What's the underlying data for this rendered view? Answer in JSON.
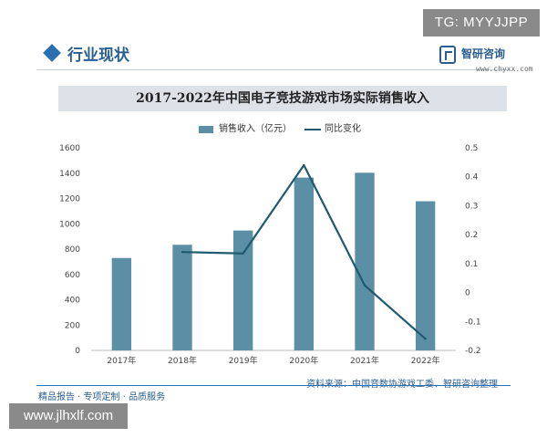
{
  "badge_top": "TG: MYYJJPP",
  "header": {
    "title": "行业现状",
    "logo_name": "智研咨询",
    "logo_url": "www.chyxx.com"
  },
  "chart_title": "2017-2022年中国电子竞技游戏市场实际销售收入",
  "legend": {
    "bar_label": "销售收入（亿元）",
    "line_label": "同比变化"
  },
  "colors": {
    "bar": "#5a8fa6",
    "line": "#1f5a70",
    "accent": "#2a5e92"
  },
  "chart_data": {
    "type": "bar",
    "categories": [
      "2017年",
      "2018年",
      "2019年",
      "2020年",
      "2021年",
      "2022年"
    ],
    "series": [
      {
        "name": "销售收入（亿元）",
        "type": "bar",
        "axis": "left",
        "values": [
          730,
          834,
          947,
          1365,
          1403,
          1178
        ]
      },
      {
        "name": "同比变化",
        "type": "line",
        "axis": "right",
        "values": [
          null,
          0.14,
          0.135,
          0.44,
          0.025,
          -0.16
        ]
      }
    ],
    "y_left": {
      "min": 0,
      "max": 1600,
      "ticks": [
        0,
        200,
        400,
        600,
        800,
        1000,
        1200,
        1400,
        1600
      ]
    },
    "y_right": {
      "min": -0.2,
      "max": 0.5,
      "ticks": [
        "-0.2",
        "-0.1",
        "0",
        "0.1",
        "0.2",
        "0.3",
        "0.4",
        "0.5"
      ]
    },
    "grid": false,
    "legend_position": "top-center",
    "title": "2017-2022年中国电子竞技游戏市场实际销售收入"
  },
  "footer": {
    "left_text": "精品报告 · 专项定制 · 品质服务",
    "source_text": "资料来源：中国音数协游戏工委、智研咨询整理"
  },
  "badge_bottom": "www.jlhxlf.com"
}
